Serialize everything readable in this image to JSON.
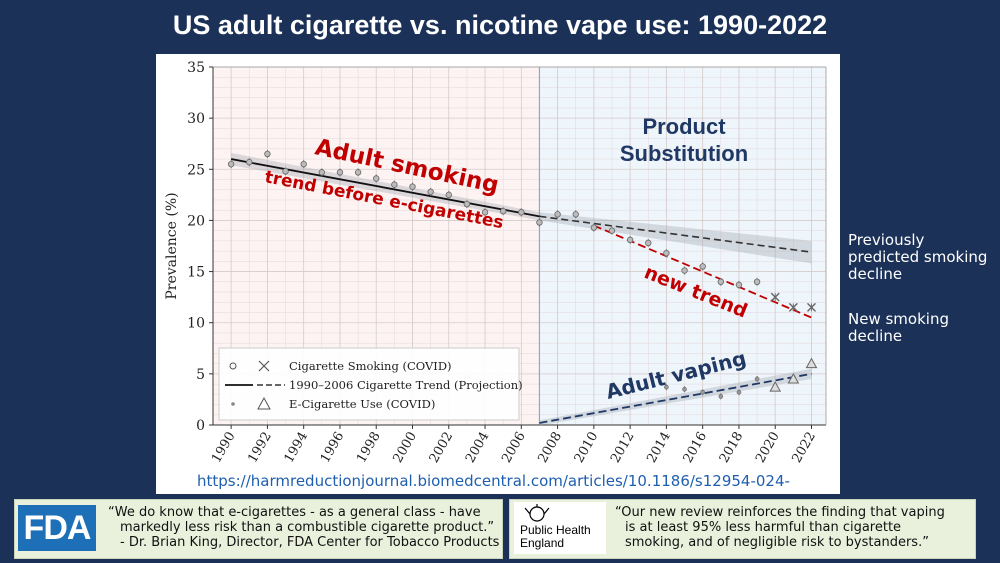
{
  "title": "US adult cigarette vs. nicotine vape use:  1990-2022",
  "chart_data": {
    "type": "scatter",
    "ylabel": "Prevalence (%)",
    "xlabel": "",
    "xlim": [
      1989,
      2022.8
    ],
    "ylim": [
      0,
      35
    ],
    "y_ticks": [
      0,
      5,
      10,
      15,
      20,
      25,
      30,
      35
    ],
    "x_ticks": [
      1990,
      1992,
      1994,
      1996,
      1998,
      2000,
      2002,
      2004,
      2006,
      2008,
      2010,
      2012,
      2014,
      2016,
      2018,
      2020,
      2022
    ],
    "grid": true,
    "split_year": 2007,
    "legend_position": "bottom-left",
    "legend": [
      "Cigarette Smoking (COVID)",
      "1990–2006 Cigarette Trend (Projection)",
      "E-Cigarette Use (COVID)"
    ],
    "series": [
      {
        "name": "Cigarette Smoking",
        "x": [
          1990,
          1991,
          1992,
          1993,
          1994,
          1995,
          1996,
          1997,
          1998,
          1999,
          2000,
          2001,
          2002,
          2003,
          2004,
          2005,
          2006,
          2007,
          2008,
          2009,
          2010,
          2011,
          2012,
          2013,
          2014,
          2015,
          2016,
          2017,
          2018,
          2019,
          2020,
          2021,
          2022
        ],
        "y": [
          25.5,
          25.7,
          26.5,
          24.8,
          25.5,
          24.7,
          24.7,
          24.7,
          24.1,
          23.5,
          23.3,
          22.8,
          22.5,
          21.6,
          20.8,
          20.9,
          20.8,
          19.8,
          20.6,
          20.6,
          19.3,
          19.0,
          18.1,
          17.8,
          16.8,
          15.1,
          15.5,
          14.0,
          13.7,
          14.0,
          12.5,
          11.5,
          11.5
        ]
      },
      {
        "name": "E-Cigarette Use",
        "x": [
          2014,
          2015,
          2016,
          2017,
          2018,
          2019,
          2020,
          2021,
          2022
        ],
        "y": [
          3.7,
          3.5,
          3.2,
          2.8,
          3.2,
          4.5,
          3.7,
          4.5,
          6.0
        ]
      },
      {
        "name": "1990–2006 Cigarette Trend",
        "x": [
          1990,
          2007
        ],
        "y": [
          26.0,
          20.4
        ]
      },
      {
        "name": "Cigarette Trend (Projection)",
        "x": [
          2007,
          2022
        ],
        "y": [
          20.4,
          16.9
        ]
      },
      {
        "name": "new trend",
        "x": [
          2010,
          2022
        ],
        "y": [
          19.5,
          10.5
        ]
      },
      {
        "name": "Adult vaping trend",
        "x": [
          2007,
          2022
        ],
        "y": [
          0.2,
          5.0
        ]
      }
    ],
    "annotations": {
      "adult_smoking": "Adult smoking",
      "trend_before": "trend before e-cigarettes",
      "product_sub_1": "Product",
      "product_sub_2": "Substitution",
      "new_trend": "new trend",
      "adult_vaping": "Adult vaping"
    }
  },
  "side_notes": {
    "previously": [
      "Previously",
      "predicted smoking",
      "decline"
    ],
    "new_decline": [
      "New smoking",
      "decline"
    ]
  },
  "url": "https://harmreductionjournal.biomedcentral.com/articles/10.1186/s12954-024-",
  "fda": {
    "logo": "FDA",
    "quote_lines": [
      "“We do know that e-cigarettes - as a general class - have",
      "markedly less risk than a combustible cigarette product.”",
      "- Dr. Brian King, Director, FDA Center for Tobacco Products"
    ]
  },
  "phe": {
    "logo_lines": [
      "Public Health",
      "England"
    ],
    "quote_lines": [
      "“Our new review reinforces the finding that vaping",
      "is at least 95% less harmful than cigarette",
      "smoking, and of negligible risk to bystanders.”"
    ]
  },
  "colors": {
    "background": "#1b3157",
    "annotation_red": "#c00000",
    "annotation_navy": "#1f3864",
    "left_region": "#fdf3f3",
    "right_region": "#eef5fb"
  }
}
